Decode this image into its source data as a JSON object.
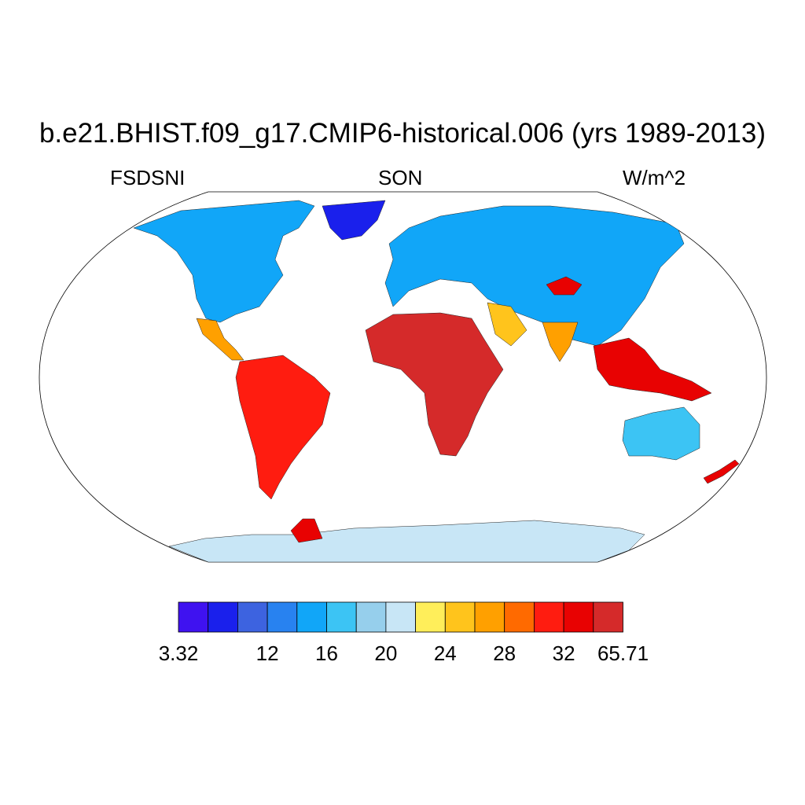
{
  "title": "b.e21.BHIST.f09_g17.CMIP6-historical.006 (yrs 1989-2013)",
  "variable": "FSDSNI",
  "season": "SON",
  "units": "W/m^2",
  "colorbar": {
    "colors": [
      "#3f12f0",
      "#1a20ec",
      "#3d63e0",
      "#2882f0",
      "#11a6f8",
      "#3cc4f4",
      "#96cfec",
      "#c8e6f6",
      "#ffee5a",
      "#ffc41c",
      "#ffa000",
      "#ff6a00",
      "#ff1c10",
      "#e80202",
      "#d52a2a"
    ],
    "tick_labels": [
      "3.32",
      "12",
      "16",
      "20",
      "24",
      "28",
      "32",
      "65.71"
    ],
    "tick_boundaries": [
      0,
      3,
      5,
      7,
      9,
      11,
      13,
      15
    ]
  },
  "map_regions": [
    {
      "name": "north-america",
      "level": 4
    },
    {
      "name": "greenland",
      "level": 1
    },
    {
      "name": "central-america",
      "level": 10
    },
    {
      "name": "south-america",
      "level": 12
    },
    {
      "name": "africa",
      "level": 14
    },
    {
      "name": "europe-asia",
      "level": 4
    },
    {
      "name": "arabia",
      "level": 9
    },
    {
      "name": "tibet",
      "level": 13
    },
    {
      "name": "india",
      "level": 10
    },
    {
      "name": "southeast-asia",
      "level": 13
    },
    {
      "name": "australia",
      "level": 5
    },
    {
      "name": "new-zealand",
      "level": 13
    },
    {
      "name": "antarctica",
      "level": 7
    },
    {
      "name": "antarctic-peninsula",
      "level": 13
    }
  ]
}
